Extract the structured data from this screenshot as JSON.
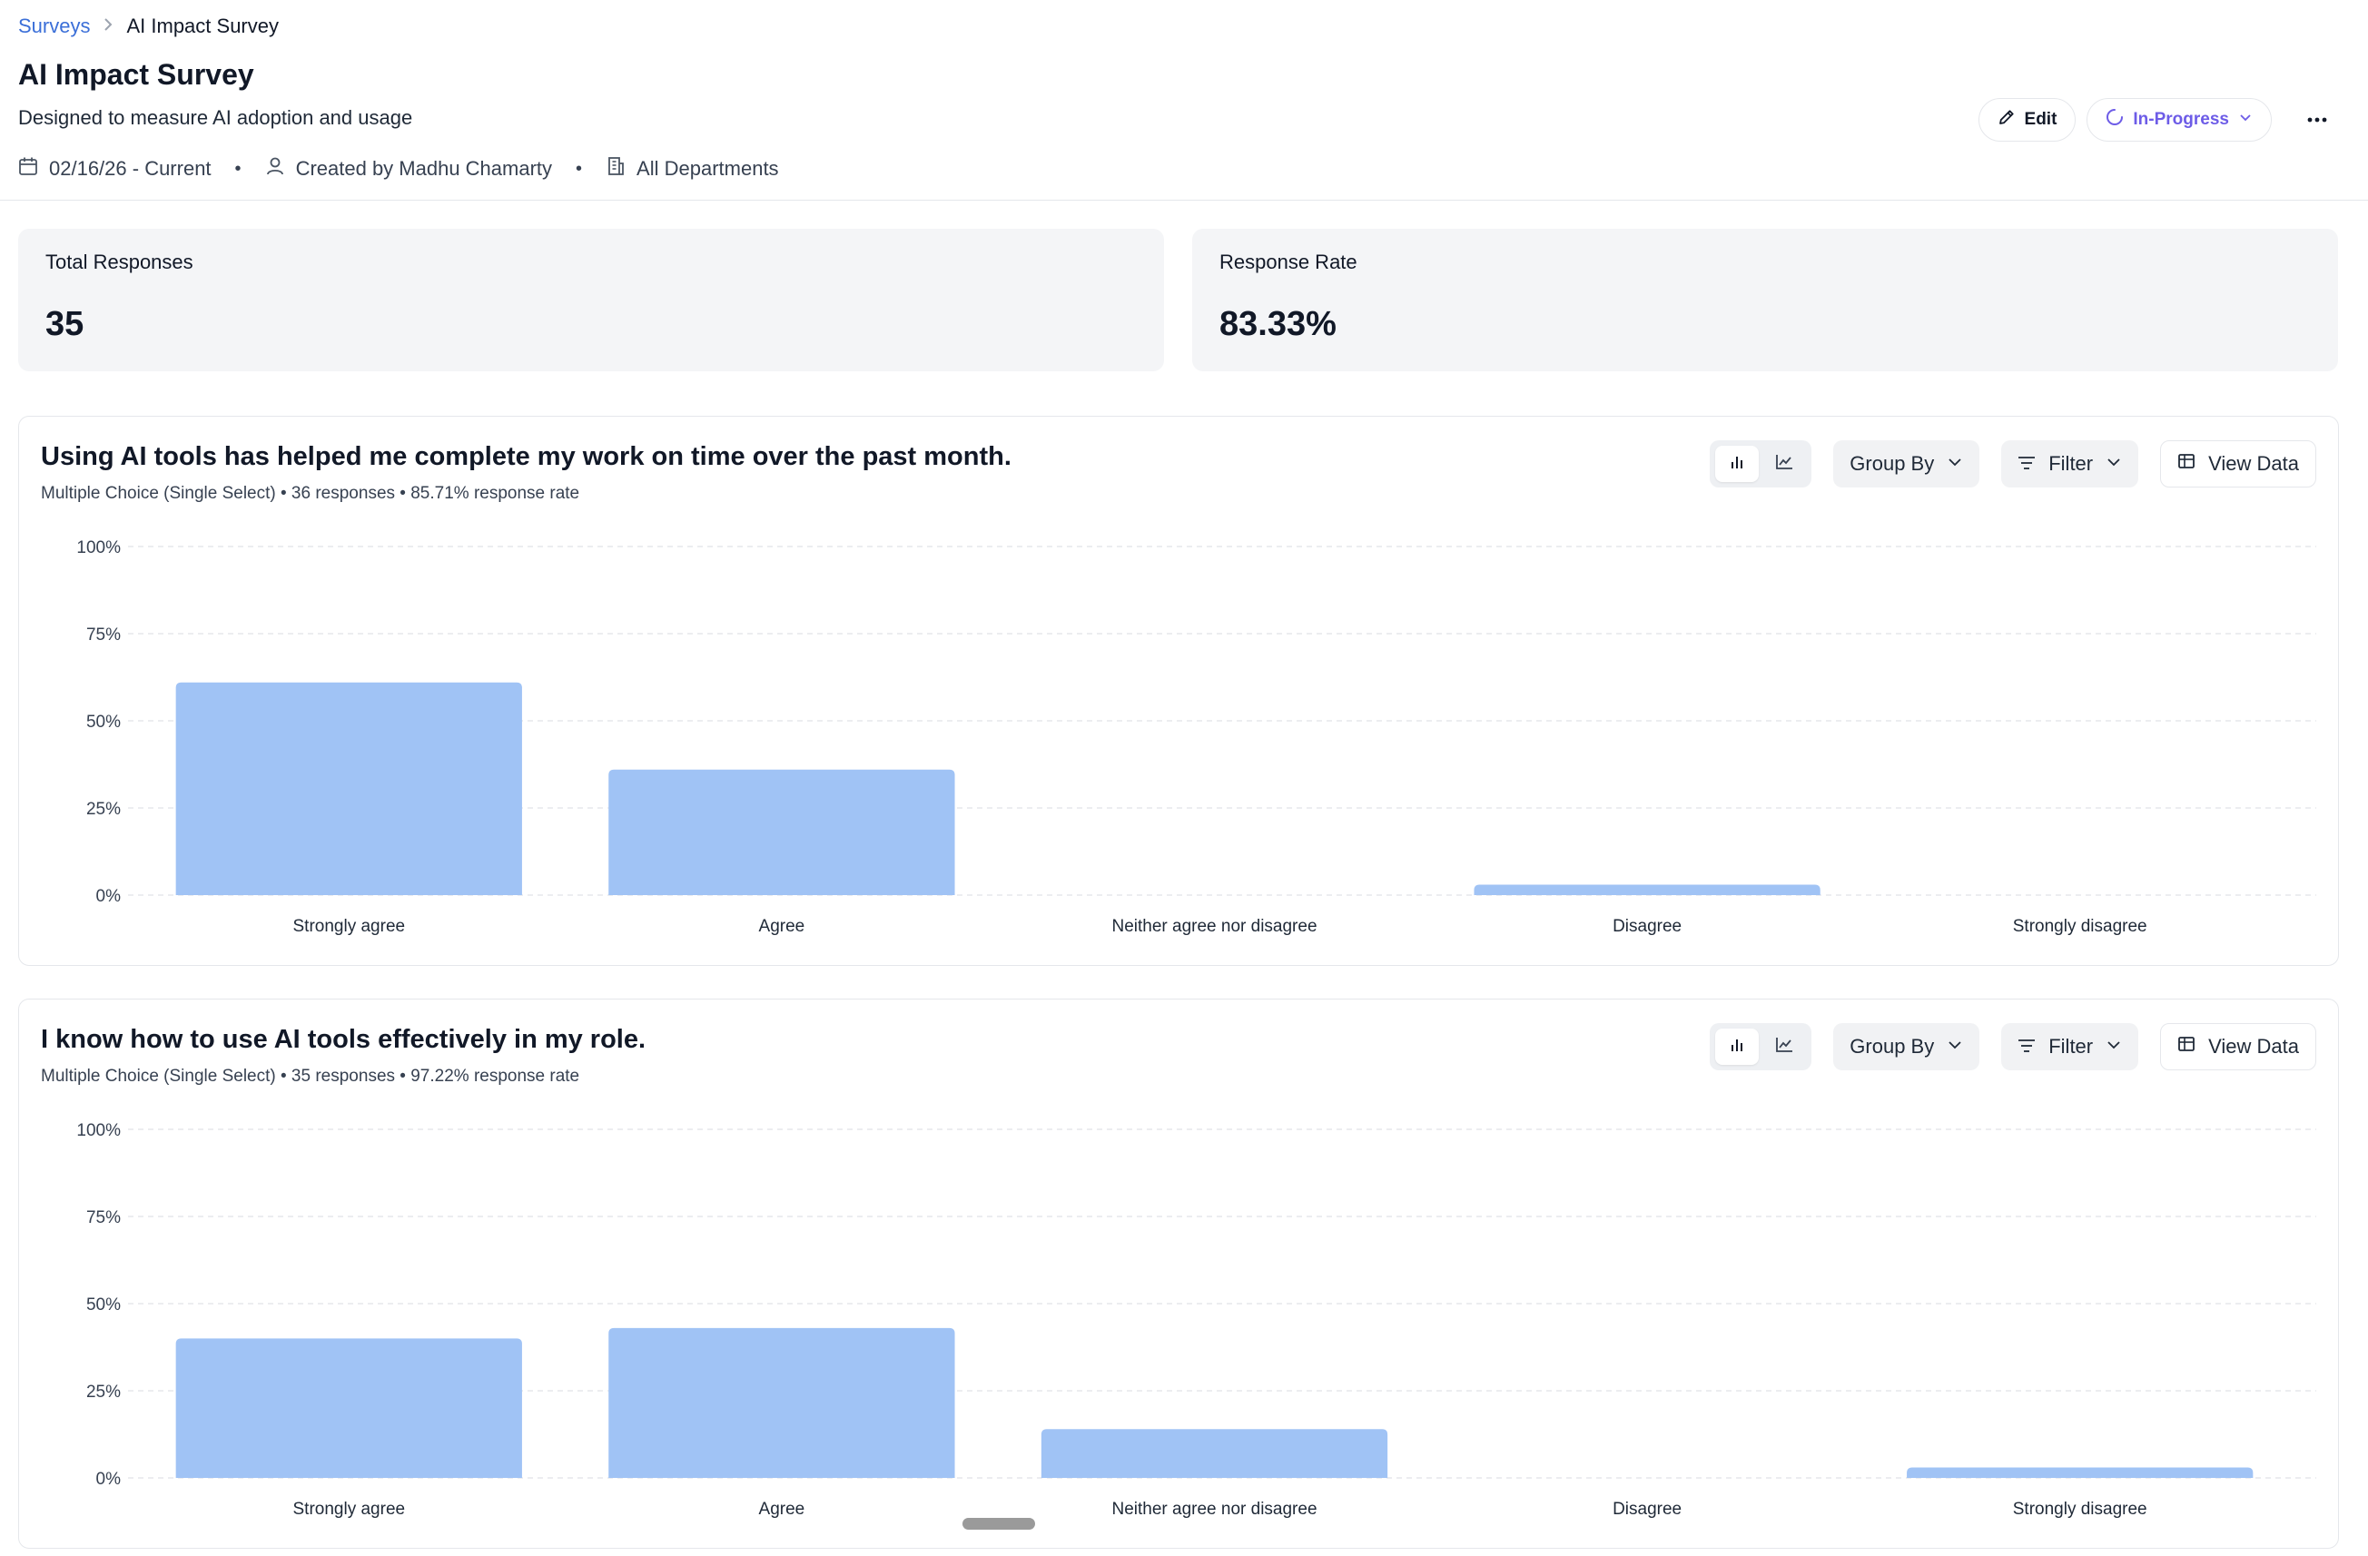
{
  "breadcrumb": {
    "parent": "Surveys",
    "current": "AI Impact Survey"
  },
  "header": {
    "title": "AI Impact Survey",
    "description": "Designed to measure AI adoption and usage",
    "date_range": "02/16/26 - Current",
    "created_by": "Created by Madhu Chamarty",
    "departments": "All Departments",
    "edit_label": "Edit",
    "status_label": "In-Progress",
    "status_color": "#6d5ce7"
  },
  "stats": {
    "total_responses_label": "Total Responses",
    "total_responses_value": "35",
    "response_rate_label": "Response Rate",
    "response_rate_value": "83.33%"
  },
  "toolbar": {
    "group_by": "Group By",
    "filter": "Filter",
    "view_data": "View Data"
  },
  "questions": [
    {
      "title": "Using AI tools has helped me complete my work on time over the past month.",
      "subtitle": "Multiple Choice (Single Select) • 36 responses • 85.71% response rate"
    },
    {
      "title": "I know how to use AI tools effectively in my role.",
      "subtitle": "Multiple Choice (Single Select) • 35 responses • 97.22% response rate"
    }
  ],
  "chart_data": [
    {
      "type": "bar",
      "categories": [
        "Strongly agree",
        "Agree",
        "Neither agree nor disagree",
        "Disagree",
        "Strongly disagree"
      ],
      "values": [
        61,
        36,
        0,
        3,
        0
      ],
      "ylim": [
        0,
        100
      ],
      "yticks": [
        "0%",
        "25%",
        "50%",
        "75%",
        "100%"
      ],
      "bar_color": "#a0c3f5",
      "grid": true
    },
    {
      "type": "bar",
      "categories": [
        "Strongly agree",
        "Agree",
        "Neither agree nor disagree",
        "Disagree",
        "Strongly disagree"
      ],
      "values": [
        40,
        43,
        14,
        0,
        3
      ],
      "ylim": [
        0,
        100
      ],
      "yticks": [
        "0%",
        "25%",
        "50%",
        "75%",
        "100%"
      ],
      "bar_color": "#a0c3f5",
      "grid": true
    }
  ]
}
